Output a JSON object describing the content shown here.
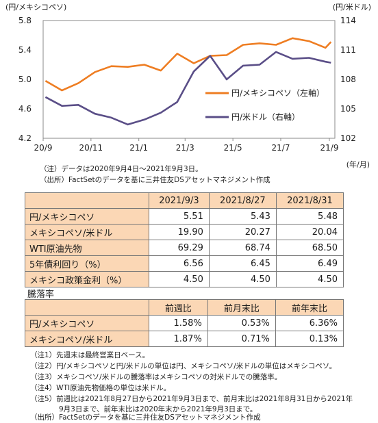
{
  "chart_data": {
    "type": "line",
    "left_axis_unit": "(円/メキシコペソ)",
    "right_axis_unit": "(円/米ドル)",
    "x_axis_unit": "(年/月)",
    "x_tick_labels": [
      "20/9",
      "20/11",
      "21/1",
      "21/3",
      "21/5",
      "21/7",
      "21/9"
    ],
    "ylim_left": [
      4.2,
      5.8
    ],
    "ylim_right": [
      102,
      114
    ],
    "y_ticks_left": [
      "4.2",
      "4.6",
      "5.0",
      "5.4",
      "5.8"
    ],
    "y_ticks_right": [
      "102",
      "105",
      "108",
      "111",
      "114"
    ],
    "grid": false,
    "legend_position": "center-right",
    "series": [
      {
        "name": "円/メキシコペソ（左軸）",
        "axis": "left",
        "color": "#ee7d22",
        "x": [
          "2020-09-04",
          "2020-09-25",
          "2020-10-16",
          "2020-11-06",
          "2020-11-27",
          "2020-12-18",
          "2021-01-08",
          "2021-01-29",
          "2021-02-19",
          "2021-03-12",
          "2021-04-02",
          "2021-04-23",
          "2021-05-14",
          "2021-06-04",
          "2021-06-25",
          "2021-07-16",
          "2021-08-06",
          "2021-08-27",
          "2021-09-03"
        ],
        "values": [
          4.98,
          4.85,
          4.95,
          5.1,
          5.18,
          5.17,
          5.2,
          5.12,
          5.35,
          5.22,
          5.32,
          5.33,
          5.47,
          5.49,
          5.47,
          5.56,
          5.52,
          5.43,
          5.51
        ]
      },
      {
        "name": "円/米ドル（右軸）",
        "axis": "right",
        "color": "#5a4e87",
        "x": [
          "2020-09-04",
          "2020-09-25",
          "2020-10-16",
          "2020-11-06",
          "2020-11-27",
          "2020-12-18",
          "2021-01-08",
          "2021-01-29",
          "2021-02-19",
          "2021-03-12",
          "2021-04-02",
          "2021-04-23",
          "2021-05-14",
          "2021-06-04",
          "2021-06-25",
          "2021-07-16",
          "2021-08-06",
          "2021-08-27",
          "2021-09-03"
        ],
        "values": [
          106.2,
          105.3,
          105.4,
          104.5,
          104.1,
          103.4,
          103.9,
          104.6,
          105.7,
          108.8,
          110.4,
          108.0,
          109.4,
          109.5,
          110.8,
          110.1,
          110.2,
          109.8,
          109.7
        ]
      }
    ]
  },
  "chart_notes": {
    "note": "（注）データは2020年9月4日～2021年9月3日。",
    "source": "（出所）FactSetのデータを基に三井住友DSアセットマネジメント作成"
  },
  "table1": {
    "headers": [
      "",
      "2021/9/3",
      "2021/8/27",
      "2021/8/31"
    ],
    "rows": [
      {
        "label": "円/メキシコペソ",
        "values": [
          "5.51",
          "5.43",
          "5.48"
        ]
      },
      {
        "label": "メキシコペソ/米ドル",
        "values": [
          "19.90",
          "20.27",
          "20.04"
        ]
      },
      {
        "label": "WTI原油先物",
        "values": [
          "69.29",
          "68.74",
          "68.50"
        ]
      },
      {
        "label": "5年債利回り（%）",
        "values": [
          "6.56",
          "6.45",
          "6.49"
        ]
      },
      {
        "label": "メキシコ政策金利（%）",
        "values": [
          "4.50",
          "4.50",
          "4.50"
        ]
      }
    ]
  },
  "table2": {
    "caption": "騰落率",
    "headers": [
      "",
      "前週比",
      "前月末比",
      "前年末比"
    ],
    "rows": [
      {
        "label": "円/メキシコペソ",
        "values": [
          "1.58%",
          "0.53%",
          "6.36%"
        ]
      },
      {
        "label": "メキシコペソ/米ドル",
        "values": [
          "1.87%",
          "0.71%",
          "0.13%"
        ]
      }
    ]
  },
  "footnotes": [
    "（注1）先週末は最終営業日ベース。",
    "（注2）円/メキシコペソと円/米ドルの単位は円、メキシコペソ/米ドルの単位はメキシコペソ。",
    "（注3）メキシコペソ/米ドルの騰落率はメキシコペソの対米ドルでの騰落率。",
    "（注4）WTI原油先物価格の単位は米ドル。",
    "（注5）前週比は2021年8月27日から2021年9月3日まで、前月末比は2021年8月31日から2021年",
    "9月3日まで、前年末比は2020年末から2021年9月3日まで。",
    "（出所）FactSetのデータを基に三井住友DSアセットマネジメント作成"
  ]
}
